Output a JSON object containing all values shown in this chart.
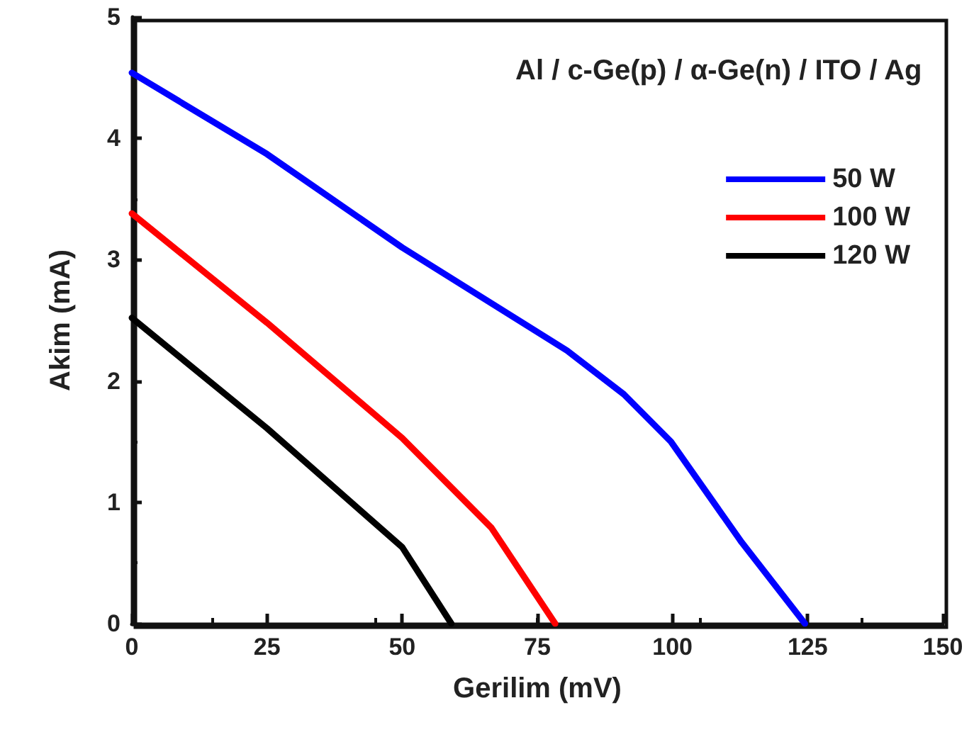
{
  "chart_data": {
    "type": "line",
    "xlabel": "Gerilim (mV)",
    "ylabel": "Akim (mA)",
    "annotations": [
      "Al / c-Ge(p) / α-Ge(n) / ITO / Ag"
    ],
    "xlim": [
      0,
      150
    ],
    "xticks": [
      0,
      25,
      50,
      75,
      100,
      125,
      150
    ],
    "ylim": [
      0,
      5
    ],
    "yticks": [
      0,
      1,
      2,
      3,
      4,
      5
    ],
    "grid": false,
    "legend": "top right",
    "marker": "none",
    "line_style": "solid",
    "series": [
      {
        "name": "50 W",
        "color": "#0000ff",
        "x": [
          0,
          25,
          50,
          80.5,
          91,
          99.7,
          112.8,
          124.5
        ],
        "values": [
          4.54,
          3.87,
          3.1,
          2.25,
          1.89,
          1.5,
          0.67,
          0
        ]
      },
      {
        "name": "100 W",
        "color": "#ff0000",
        "x": [
          0,
          25,
          50,
          66.5,
          78.3
        ],
        "values": [
          3.38,
          2.48,
          1.53,
          0.79,
          0
        ]
      },
      {
        "name": "120 W",
        "color": "#000000",
        "x": [
          0,
          25,
          50,
          59.1
        ],
        "values": [
          2.52,
          1.61,
          0.63,
          0
        ]
      }
    ]
  }
}
